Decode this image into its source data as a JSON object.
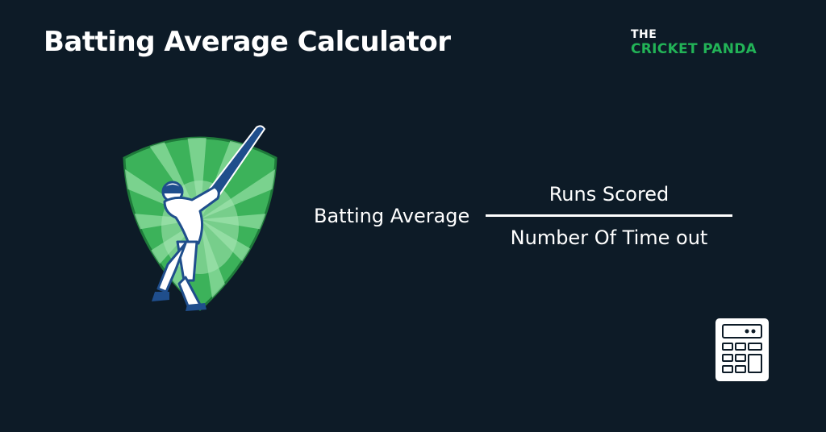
{
  "header": {
    "title": "Batting Average Calculator",
    "brand_line1": "THE",
    "brand_line2": "CRICKET PANDA"
  },
  "formula": {
    "label": "Batting Average",
    "numerator": "Runs Scored",
    "denominator": "Number Of Time out"
  },
  "icons": {
    "emblem": "cricket-batsman-shield-icon",
    "calculator": "calculator-icon"
  },
  "colors": {
    "background": "#0d1b27",
    "brand_green": "#22b357",
    "shield_green": "#3cb25a",
    "batsman_blue": "#1f4e8c"
  }
}
